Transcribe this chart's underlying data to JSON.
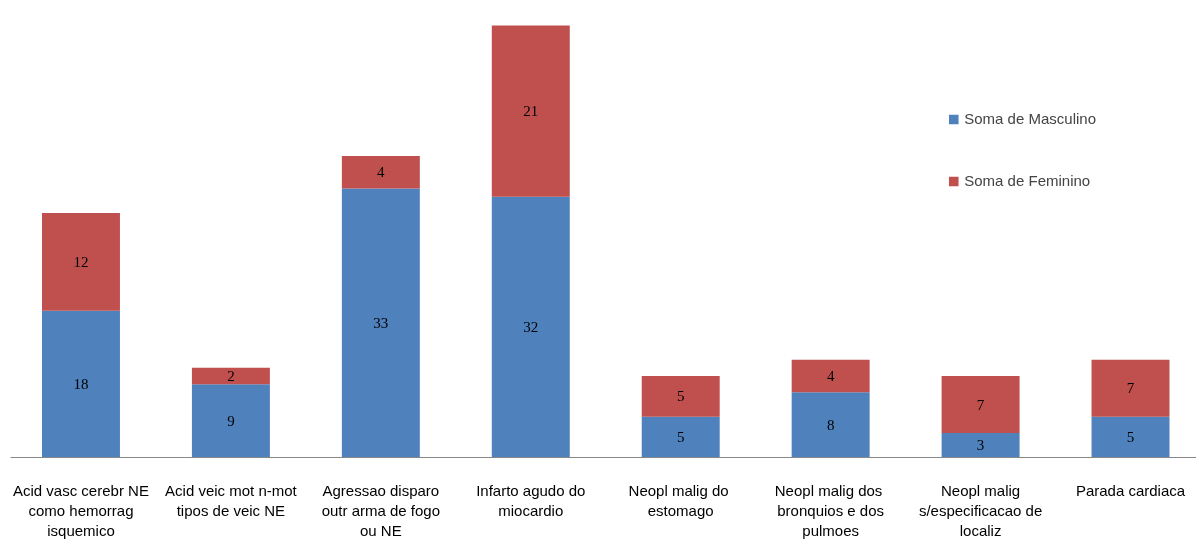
{
  "chart_data": {
    "type": "bar",
    "stacked": true,
    "data_labels": true,
    "legend": "top right",
    "grid": false,
    "categories": [
      "Acid vasc cerebr NE como hemorrag isquemico",
      "Acid veic mot n-mot tipos de veic NE",
      "Agressao disparo outr arma de fogo ou NE",
      "Infarto agudo do miocardio",
      "Neopl malig  do estomago",
      "Neopl malig  dos bronquios e dos pulmoes",
      "Neopl malig s/especificacao de localiz",
      "Parada cardiaca"
    ],
    "series": [
      {
        "name": "Soma de Masculino",
        "color": "#4f81bd",
        "values": [
          18,
          9,
          33,
          32,
          5,
          8,
          3,
          5
        ]
      },
      {
        "name": "Soma de Feminino",
        "color": "#c0504d",
        "values": [
          12,
          2,
          4,
          21,
          5,
          4,
          7,
          7
        ]
      }
    ]
  }
}
